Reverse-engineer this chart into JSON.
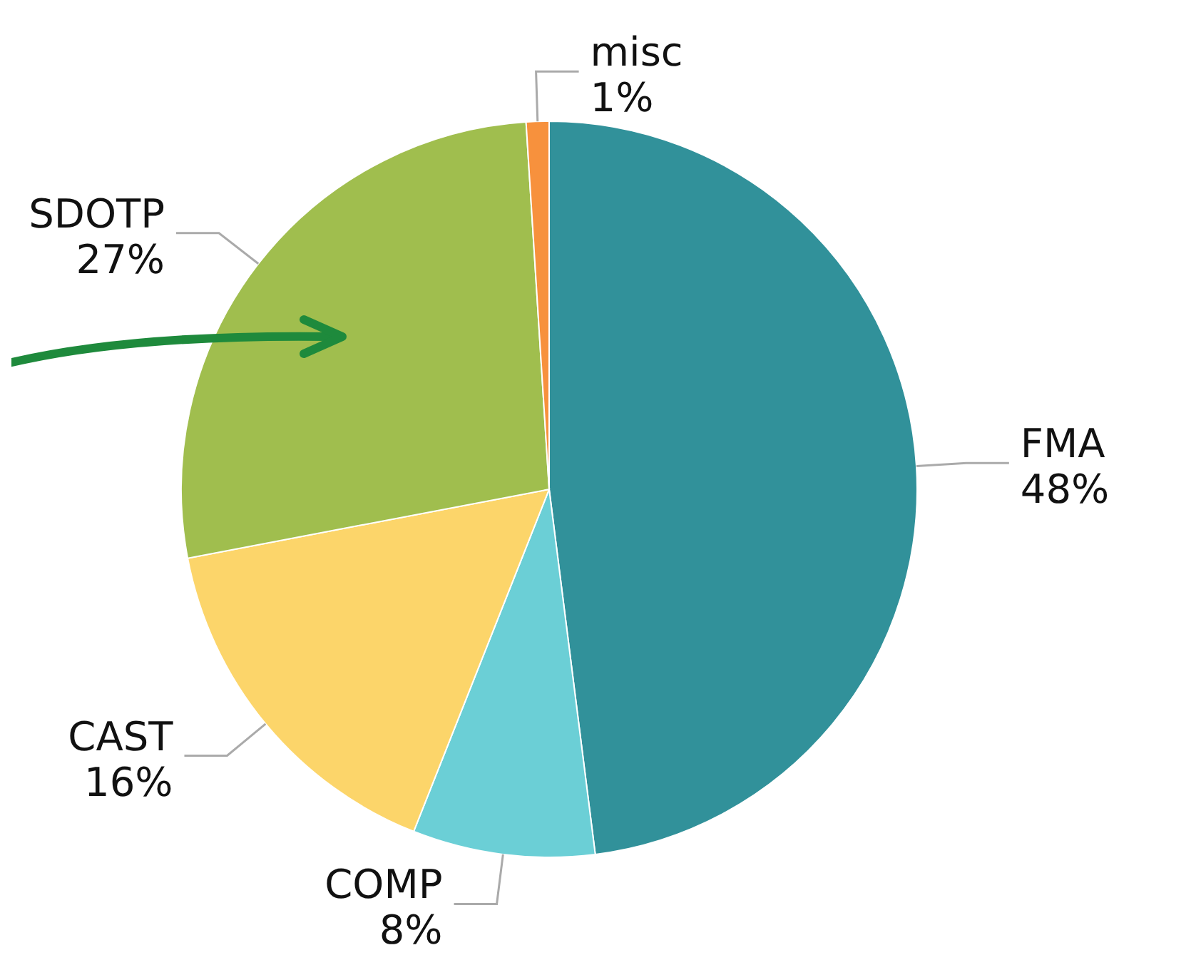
{
  "chart_data": {
    "type": "pie",
    "categories": [
      "FMA",
      "COMP",
      "CAST",
      "SDOTP",
      "misc"
    ],
    "values": [
      48,
      8,
      16,
      27,
      1
    ],
    "value_labels": [
      "48%",
      "8%",
      "16%",
      "27%",
      "1%"
    ],
    "colors": [
      "#31919a",
      "#6bcfd6",
      "#fcd56a",
      "#a0be4e",
      "#f7913d"
    ]
  }
}
